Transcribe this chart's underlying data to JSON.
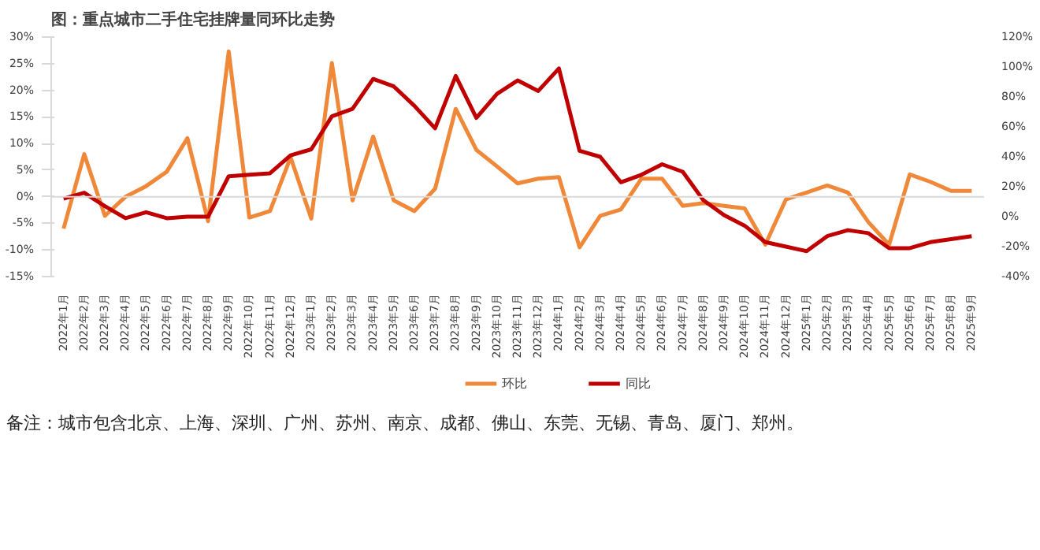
{
  "chart_data": {
    "type": "line",
    "title": "图：重点城市二手住宅挂牌量同环比走势",
    "categories": [
      "2022年1月",
      "2022年2月",
      "2022年3月",
      "2022年4月",
      "2022年5月",
      "2022年6月",
      "2022年7月",
      "2022年8月",
      "2022年9月",
      "2022年10月",
      "2022年11月",
      "2022年12月",
      "2023年1月",
      "2023年2月",
      "2023年3月",
      "2023年4月",
      "2023年5月",
      "2023年6月",
      "2023年7月",
      "2023年8月",
      "2023年9月",
      "2023年10月",
      "2023年11月",
      "2023年12月",
      "2024年1月",
      "2024年2月",
      "2024年3月",
      "2024年4月",
      "2024年5月",
      "2024年6月",
      "2024年7月",
      "2024年8月",
      "2024年9月",
      "2024年10月",
      "2024年11月",
      "2024年12月",
      "2025年1月",
      "2025年2月",
      "2025年3月",
      "2025年4月",
      "2025年5月",
      "2025年6月",
      "2025年7月",
      "2025年8月",
      "2025年9月"
    ],
    "series": [
      {
        "name": "环比",
        "color": "#f0883a",
        "values": [
          -6,
          8,
          -3.6,
          0,
          2,
          4.7,
          11,
          -4.6,
          27.3,
          -3.9,
          -2.7,
          7.4,
          -4.1,
          25.1,
          -0.7,
          11.3,
          -0.7,
          -2.7,
          1.5,
          16.5,
          8.8,
          5.7,
          2.5,
          3.4,
          3.7,
          -9.5,
          -3.6,
          -2.4,
          3.4,
          3.4,
          -1.7,
          -1.2,
          -1.7,
          -2.2,
          -9,
          -0.5,
          0.8,
          2.1,
          0.8,
          -4.8,
          -9,
          4.2,
          2.8,
          1.1,
          1.1
        ]
      },
      {
        "name": "同比",
        "color": "#c00000",
        "axis": "y2",
        "values": [
          12,
          16,
          7,
          -1,
          3,
          -1,
          0,
          0,
          27,
          28,
          29,
          41,
          45,
          67,
          72,
          92,
          87,
          74,
          59,
          94,
          66,
          82,
          91,
          84,
          99,
          44,
          40,
          23,
          28,
          35,
          30,
          11,
          1,
          -6,
          -17,
          -20,
          -23,
          -13,
          -9,
          -11,
          -21,
          -21,
          -17,
          -15,
          -13
        ]
      }
    ],
    "ylim": [
      -15,
      30
    ],
    "yticks": [
      {
        "value": -15,
        "label": "-15%"
      },
      {
        "value": -10,
        "label": "-10%"
      },
      {
        "value": -5,
        "label": "-5%"
      },
      {
        "value": 0,
        "label": "0%"
      },
      {
        "value": 5,
        "label": "5%"
      },
      {
        "value": 10,
        "label": "10%"
      },
      {
        "value": 15,
        "label": "15%"
      },
      {
        "value": 20,
        "label": "20%"
      },
      {
        "value": 25,
        "label": "25%"
      },
      {
        "value": 30,
        "label": "30%"
      }
    ],
    "y2lim": [
      -40,
      120
    ],
    "y2ticks": [
      {
        "value": -40,
        "label": "-40%"
      },
      {
        "value": -20,
        "label": "-20%"
      },
      {
        "value": 0,
        "label": "0%"
      },
      {
        "value": 20,
        "label": "20%"
      },
      {
        "value": 40,
        "label": "40%"
      },
      {
        "value": 60,
        "label": "60%"
      },
      {
        "value": 80,
        "label": "80%"
      },
      {
        "value": 100,
        "label": "100%"
      },
      {
        "value": 120,
        "label": "120%"
      }
    ],
    "ref_lines": [
      {
        "axis": "y",
        "value": 0,
        "color": "#d9d9d9"
      }
    ],
    "grid": false,
    "legend": "bottom",
    "annotations": [
      "备注：城市包含北京、上海、深圳、广州、苏州、南京、成都、佛山、东莞、无锡、青岛、厦门、郑州。"
    ]
  }
}
